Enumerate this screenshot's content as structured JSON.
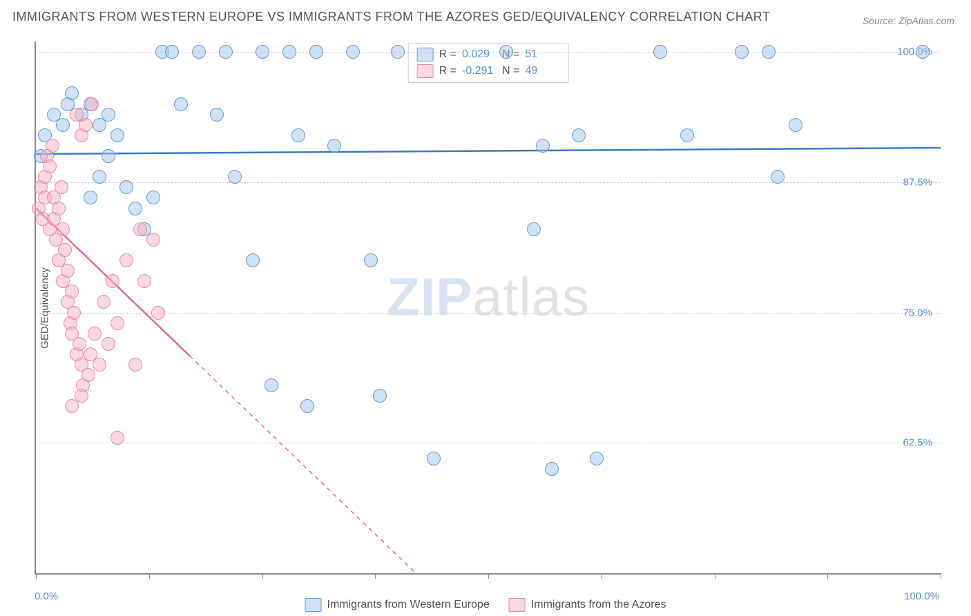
{
  "title": "IMMIGRANTS FROM WESTERN EUROPE VS IMMIGRANTS FROM THE AZORES GED/EQUIVALENCY CORRELATION CHART",
  "source": "Source: ZipAtlas.com",
  "y_axis_label": "GED/Equivalency",
  "watermark_bold": "ZIP",
  "watermark_rest": "atlas",
  "chart": {
    "type": "scatter",
    "background_color": "#ffffff",
    "grid_color": "#cccccc",
    "axis_color": "#888888",
    "xlim": [
      0,
      100
    ],
    "ylim": [
      50,
      101
    ],
    "y_ticks": [
      62.5,
      75.0,
      87.5,
      100.0
    ],
    "y_tick_labels": [
      "62.5%",
      "75.0%",
      "87.5%",
      "100.0%"
    ],
    "x_ticks": [
      0,
      12.5,
      25,
      37.5,
      50,
      62.5,
      75,
      87.5,
      100
    ],
    "x_min_label": "0.0%",
    "x_max_label": "100.0%",
    "marker_radius": 9,
    "marker_stroke_width": 1.5,
    "series": [
      {
        "name": "Immigrants from Western Europe",
        "fill_color": "rgba(160,195,235,0.5)",
        "stroke_color": "#6a9bd1",
        "line_color": "#3b78c4",
        "R": "0.029",
        "N": "51",
        "trend": {
          "x1": 0,
          "y1": 90.2,
          "x2": 100,
          "y2": 90.8,
          "solid_until": 100
        },
        "points": [
          [
            0.5,
            90
          ],
          [
            1,
            92
          ],
          [
            2,
            94
          ],
          [
            3,
            93
          ],
          [
            3.5,
            95
          ],
          [
            4,
            96
          ],
          [
            5,
            94
          ],
          [
            6,
            95
          ],
          [
            7,
            93
          ],
          [
            8,
            94
          ],
          [
            6,
            86
          ],
          [
            7,
            88
          ],
          [
            8,
            90
          ],
          [
            9,
            92
          ],
          [
            10,
            87
          ],
          [
            11,
            85
          ],
          [
            12,
            83
          ],
          [
            13,
            86
          ],
          [
            14,
            100
          ],
          [
            15,
            100
          ],
          [
            16,
            95
          ],
          [
            18,
            100
          ],
          [
            20,
            94
          ],
          [
            21,
            100
          ],
          [
            22,
            88
          ],
          [
            24,
            80
          ],
          [
            25,
            100
          ],
          [
            26,
            68
          ],
          [
            28,
            100
          ],
          [
            29,
            92
          ],
          [
            30,
            66
          ],
          [
            31,
            100
          ],
          [
            33,
            91
          ],
          [
            35,
            100
          ],
          [
            37,
            80
          ],
          [
            38,
            67
          ],
          [
            40,
            100
          ],
          [
            44,
            61
          ],
          [
            52,
            100
          ],
          [
            55,
            83
          ],
          [
            56,
            91
          ],
          [
            57,
            60
          ],
          [
            60,
            92
          ],
          [
            62,
            61
          ],
          [
            69,
            100
          ],
          [
            72,
            92
          ],
          [
            78,
            100
          ],
          [
            81,
            100
          ],
          [
            84,
            93
          ],
          [
            98,
            100
          ],
          [
            82,
            88
          ]
        ]
      },
      {
        "name": "Immigrants from the Azores",
        "fill_color": "rgba(245,175,195,0.5)",
        "stroke_color": "#e88ba5",
        "line_color": "#e46a8e",
        "R": "-0.291",
        "N": "49",
        "trend": {
          "x1": 0,
          "y1": 85,
          "x2": 42,
          "y2": 50,
          "solid_until": 17
        },
        "points": [
          [
            0.3,
            85
          ],
          [
            0.5,
            87
          ],
          [
            0.8,
            84
          ],
          [
            1,
            86
          ],
          [
            1,
            88
          ],
          [
            1.2,
            90
          ],
          [
            1.5,
            83
          ],
          [
            1.5,
            89
          ],
          [
            1.8,
            91
          ],
          [
            2,
            84
          ],
          [
            2,
            86
          ],
          [
            2.2,
            82
          ],
          [
            2.5,
            80
          ],
          [
            2.5,
            85
          ],
          [
            2.8,
            87
          ],
          [
            3,
            78
          ],
          [
            3,
            83
          ],
          [
            3.2,
            81
          ],
          [
            3.5,
            76
          ],
          [
            3.5,
            79
          ],
          [
            3.8,
            74
          ],
          [
            4,
            77
          ],
          [
            4,
            73
          ],
          [
            4.2,
            75
          ],
          [
            4.5,
            71
          ],
          [
            4.5,
            94
          ],
          [
            4.8,
            72
          ],
          [
            5,
            70
          ],
          [
            5,
            92
          ],
          [
            5.2,
            68
          ],
          [
            5.5,
            93
          ],
          [
            5.8,
            69
          ],
          [
            6,
            71
          ],
          [
            6.2,
            95
          ],
          [
            6.5,
            73
          ],
          [
            7,
            70
          ],
          [
            7.5,
            76
          ],
          [
            8,
            72
          ],
          [
            8.5,
            78
          ],
          [
            9,
            74
          ],
          [
            10,
            80
          ],
          [
            11,
            70
          ],
          [
            11.5,
            83
          ],
          [
            12,
            78
          ],
          [
            13,
            82
          ],
          [
            13.5,
            75
          ],
          [
            9,
            63
          ],
          [
            5,
            67
          ],
          [
            4,
            66
          ]
        ]
      }
    ]
  },
  "legend_top": {
    "r_label": "R =",
    "n_label": "N ="
  },
  "legend_bottom": {
    "items": [
      "Immigrants from Western Europe",
      "Immigrants from the Azores"
    ]
  }
}
